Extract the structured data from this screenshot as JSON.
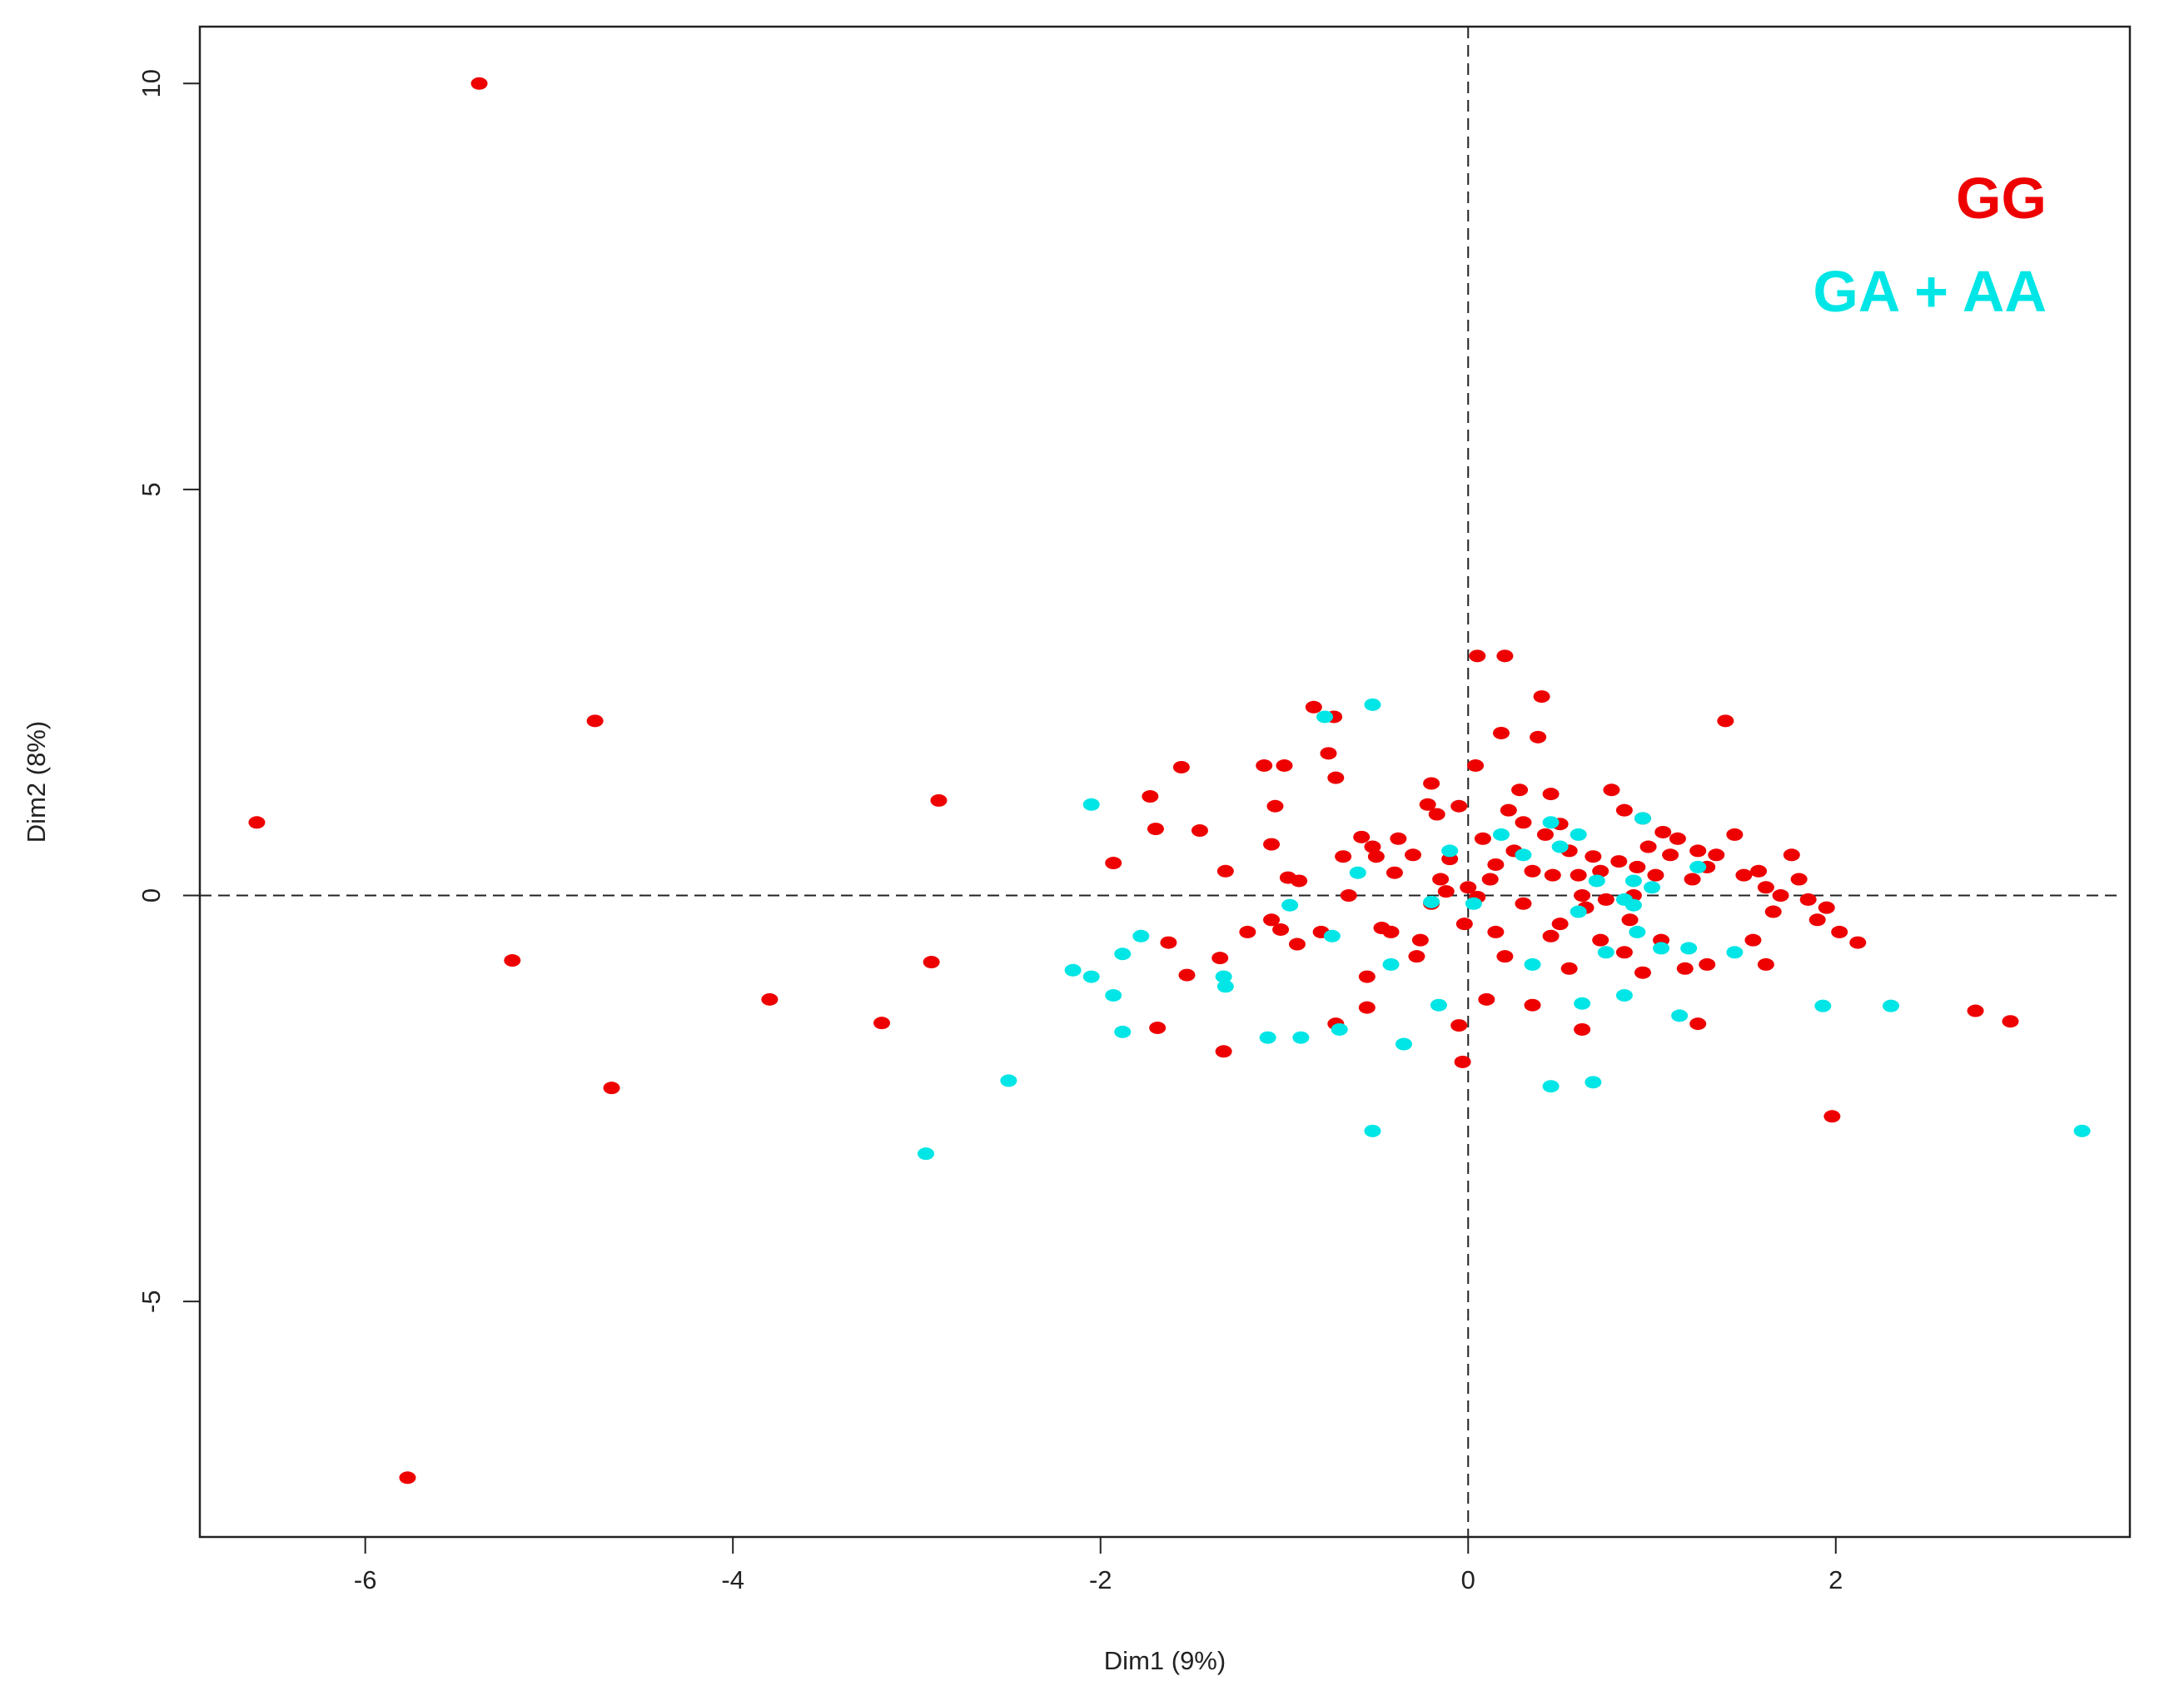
{
  "colors": {
    "background": "#ffffff",
    "axis": "#222222",
    "reference_line": "#222222"
  },
  "chart_data": {
    "type": "scatter",
    "title": "",
    "xlabel": "Dim1 (9%)",
    "ylabel": "Dim2 (8%)",
    "xlim": [
      -6.9,
      3.6
    ],
    "ylim": [
      -7.9,
      10.7
    ],
    "xticks": [
      -6,
      -4,
      -2,
      0,
      2
    ],
    "xtick_labels": [
      "-6",
      "-4",
      "-2",
      "0",
      "2"
    ],
    "yticks": [
      -5,
      0,
      5,
      10
    ],
    "ytick_labels": [
      "-5",
      "0",
      "5",
      "10"
    ],
    "grid": false,
    "reference_lines": {
      "x": 0,
      "y": 0,
      "style": "dashed"
    },
    "legend_position": "top-right",
    "series": [
      {
        "name": "GG",
        "color": "#ee0000",
        "points": [
          [
            -5.38,
            10.0
          ],
          [
            -5.77,
            -7.17
          ],
          [
            -6.59,
            0.9
          ],
          [
            -4.75,
            2.15
          ],
          [
            -5.2,
            -0.8
          ],
          [
            -4.66,
            -2.37
          ],
          [
            -3.8,
            -1.28
          ],
          [
            -3.19,
            -1.57
          ],
          [
            -2.88,
            1.17
          ],
          [
            -2.92,
            -0.82
          ],
          [
            -1.93,
            0.4
          ],
          [
            -1.73,
            1.22
          ],
          [
            -1.56,
            1.58
          ],
          [
            -1.7,
            0.82
          ],
          [
            -1.46,
            0.8
          ],
          [
            -1.63,
            -0.58
          ],
          [
            -1.53,
            -0.98
          ],
          [
            -1.69,
            -1.63
          ],
          [
            -1.32,
            0.3
          ],
          [
            -1.35,
            -0.77
          ],
          [
            -1.33,
            -1.92
          ],
          [
            -1.2,
            -0.45
          ],
          [
            -1.11,
            1.6
          ],
          [
            -1.0,
            1.6
          ],
          [
            -1.07,
            0.63
          ],
          [
            -1.05,
            1.1
          ],
          [
            -0.98,
            0.22
          ],
          [
            -0.92,
            0.18
          ],
          [
            -1.02,
            -0.42
          ],
          [
            -1.07,
            -0.3
          ],
          [
            -0.93,
            -0.6
          ],
          [
            -0.84,
            2.32
          ],
          [
            -0.73,
            2.2
          ],
          [
            -0.76,
            1.75
          ],
          [
            -0.72,
            1.45
          ],
          [
            -0.68,
            0.48
          ],
          [
            -0.65,
            0.0
          ],
          [
            -0.58,
            0.72
          ],
          [
            -0.52,
            0.6
          ],
          [
            -0.5,
            0.48
          ],
          [
            -0.47,
            -0.4
          ],
          [
            -0.42,
            -0.45
          ],
          [
            -0.38,
            0.7
          ],
          [
            -0.3,
            0.5
          ],
          [
            -0.28,
            -0.75
          ],
          [
            -0.26,
            -0.55
          ],
          [
            -0.22,
            1.12
          ],
          [
            -0.2,
            1.38
          ],
          [
            -0.17,
            1.0
          ],
          [
            -0.15,
            0.2
          ],
          [
            -0.1,
            0.45
          ],
          [
            -0.05,
            1.1
          ],
          [
            0.0,
            0.1
          ],
          [
            -0.02,
            -0.35
          ],
          [
            0.04,
            1.6
          ],
          [
            0.05,
            2.95
          ],
          [
            0.2,
            2.95
          ],
          [
            0.08,
            0.7
          ],
          [
            0.12,
            0.2
          ],
          [
            0.15,
            -0.45
          ],
          [
            0.18,
            2.0
          ],
          [
            0.22,
            1.05
          ],
          [
            0.28,
            1.3
          ],
          [
            0.3,
            0.9
          ],
          [
            0.25,
            0.55
          ],
          [
            0.35,
            0.3
          ],
          [
            0.4,
            2.45
          ],
          [
            0.38,
            1.95
          ],
          [
            0.45,
            1.25
          ],
          [
            0.42,
            0.75
          ],
          [
            0.46,
            0.25
          ],
          [
            0.5,
            -0.35
          ],
          [
            0.55,
            0.55
          ],
          [
            0.6,
            0.25
          ],
          [
            0.64,
            -0.15
          ],
          [
            0.68,
            0.48
          ],
          [
            0.72,
            0.3
          ],
          [
            0.75,
            -0.05
          ],
          [
            0.78,
            1.3
          ],
          [
            0.82,
            0.42
          ],
          [
            0.85,
            1.05
          ],
          [
            0.88,
            -0.3
          ],
          [
            0.92,
            0.35
          ],
          [
            0.95,
            0.95
          ],
          [
            0.98,
            0.6
          ],
          [
            1.02,
            0.25
          ],
          [
            1.06,
            0.78
          ],
          [
            1.1,
            0.5
          ],
          [
            1.14,
            0.7
          ],
          [
            1.18,
            -0.9
          ],
          [
            1.22,
            0.2
          ],
          [
            1.25,
            0.55
          ],
          [
            1.3,
            0.35
          ],
          [
            1.35,
            0.5
          ],
          [
            1.4,
            2.15
          ],
          [
            1.45,
            0.75
          ],
          [
            1.5,
            0.25
          ],
          [
            1.55,
            -0.55
          ],
          [
            1.58,
            0.3
          ],
          [
            1.62,
            0.1
          ],
          [
            1.66,
            -0.2
          ],
          [
            1.7,
            0.0
          ],
          [
            1.76,
            0.5
          ],
          [
            1.8,
            0.2
          ],
          [
            1.85,
            -0.05
          ],
          [
            1.9,
            -0.3
          ],
          [
            1.95,
            -0.15
          ],
          [
            2.02,
            -0.45
          ],
          [
            2.12,
            -0.58
          ],
          [
            1.98,
            -2.72
          ],
          [
            2.76,
            -1.42
          ],
          [
            2.95,
            -1.55
          ],
          [
            1.25,
            -1.58
          ],
          [
            0.62,
            -1.65
          ],
          [
            0.35,
            -1.35
          ],
          [
            0.1,
            -1.28
          ],
          [
            -0.05,
            -1.6
          ],
          [
            -0.03,
            -2.05
          ],
          [
            -0.55,
            -1.38
          ],
          [
            -0.72,
            -1.58
          ],
          [
            -0.8,
            -0.45
          ],
          [
            -0.55,
            -1.0
          ],
          [
            0.2,
            -0.75
          ],
          [
            0.55,
            -0.9
          ],
          [
            0.85,
            -0.7
          ],
          [
            1.05,
            -0.55
          ],
          [
            1.3,
            -0.85
          ],
          [
            1.62,
            -0.85
          ],
          [
            -0.12,
            0.05
          ],
          [
            0.3,
            -0.1
          ],
          [
            0.62,
            0.0
          ],
          [
            0.9,
            0.0
          ],
          [
            0.45,
            -0.5
          ],
          [
            0.72,
            -0.55
          ],
          [
            0.95,
            -0.95
          ],
          [
            -0.4,
            0.28
          ],
          [
            -0.2,
            -0.1
          ],
          [
            0.05,
            -0.02
          ],
          [
            0.15,
            0.38
          ],
          [
            0.5,
            0.88
          ]
        ]
      },
      {
        "name": "GA + AA",
        "color": "#00e5e5",
        "points": [
          [
            -2.05,
            1.12
          ],
          [
            -2.15,
            -0.92
          ],
          [
            -2.05,
            -1.0
          ],
          [
            -1.93,
            -1.23
          ],
          [
            -1.88,
            -0.72
          ],
          [
            -1.88,
            -1.68
          ],
          [
            -1.78,
            -0.5
          ],
          [
            -2.5,
            -2.28
          ],
          [
            -2.95,
            -3.18
          ],
          [
            -1.33,
            -1.0
          ],
          [
            -1.32,
            -1.12
          ],
          [
            -1.09,
            -1.75
          ],
          [
            -0.97,
            -0.12
          ],
          [
            -0.91,
            -1.75
          ],
          [
            -0.78,
            2.2
          ],
          [
            -0.74,
            -0.5
          ],
          [
            -0.7,
            -1.65
          ],
          [
            -0.6,
            0.28
          ],
          [
            -0.52,
            2.35
          ],
          [
            -0.52,
            -2.9
          ],
          [
            -0.42,
            -0.85
          ],
          [
            -0.35,
            -1.83
          ],
          [
            -0.2,
            -0.08
          ],
          [
            -0.16,
            -1.35
          ],
          [
            -0.1,
            0.55
          ],
          [
            0.03,
            -0.1
          ],
          [
            0.18,
            0.75
          ],
          [
            0.3,
            0.5
          ],
          [
            0.35,
            -0.85
          ],
          [
            0.45,
            0.9
          ],
          [
            0.45,
            -2.35
          ],
          [
            0.5,
            0.6
          ],
          [
            0.6,
            0.75
          ],
          [
            0.62,
            -1.33
          ],
          [
            0.68,
            -2.3
          ],
          [
            0.7,
            0.18
          ],
          [
            0.75,
            -0.7
          ],
          [
            0.85,
            -1.23
          ],
          [
            0.9,
            -0.12
          ],
          [
            0.95,
            0.95
          ],
          [
            1.0,
            0.1
          ],
          [
            1.05,
            -0.65
          ],
          [
            1.15,
            -1.48
          ],
          [
            1.2,
            -0.65
          ],
          [
            1.25,
            0.35
          ],
          [
            1.45,
            -0.7
          ],
          [
            1.93,
            -1.36
          ],
          [
            2.3,
            -1.36
          ],
          [
            3.34,
            -2.9
          ],
          [
            0.92,
            -0.45
          ],
          [
            0.6,
            -0.2
          ],
          [
            0.85,
            -0.05
          ],
          [
            0.9,
            0.18
          ]
        ]
      }
    ]
  }
}
